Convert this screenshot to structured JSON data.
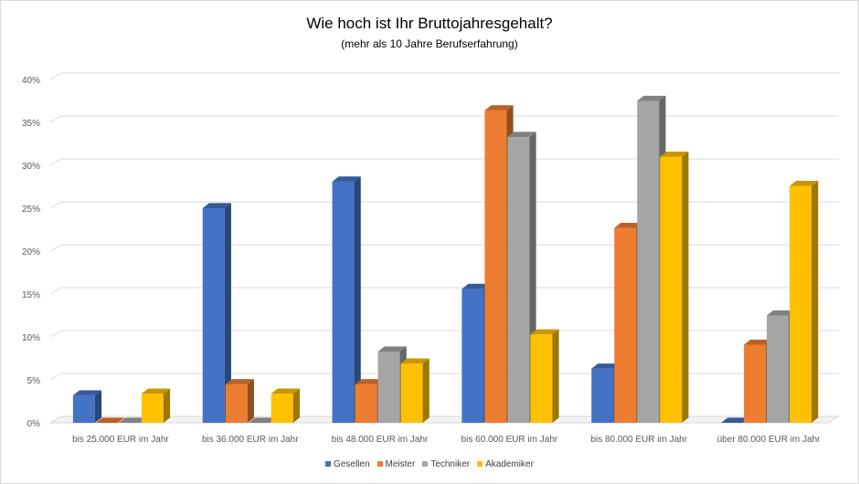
{
  "chart_data": {
    "type": "bar",
    "title": "Wie hoch ist Ihr Bruttojahresgehalt?",
    "subtitle": "(mehr als 10 Jahre Berufserfahrung)",
    "categories": [
      "bis 25.000 EUR im Jahr",
      "bis 36.000 EUR im Jahr",
      "bis 48.000 EUR im Jahr",
      "bis 60.000 EUR im Jahr",
      "bis 80.000 EUR im Jahr",
      "über 80.000 EUR im Jahr"
    ],
    "series": [
      {
        "name": "Gesellen",
        "color": "#4472C4",
        "values": [
          3.2,
          25.0,
          28.1,
          15.6,
          6.3,
          0.0
        ]
      },
      {
        "name": "Meister",
        "color": "#ED7D31",
        "values": [
          0.0,
          4.5,
          4.5,
          36.4,
          22.7,
          9.1
        ]
      },
      {
        "name": "Techniker",
        "color": "#A5A5A5",
        "values": [
          0.0,
          0.0,
          8.3,
          33.3,
          37.5,
          12.5
        ]
      },
      {
        "name": "Akademiker",
        "color": "#FFC000",
        "values": [
          3.4,
          3.4,
          6.9,
          10.3,
          31.0,
          27.6
        ]
      }
    ],
    "y_ticks": [
      "0%",
      "5%",
      "10%",
      "15%",
      "20%",
      "25%",
      "30%",
      "35%",
      "40%"
    ],
    "ylim": [
      0,
      40
    ],
    "grid": true,
    "legend_position": "bottom"
  }
}
